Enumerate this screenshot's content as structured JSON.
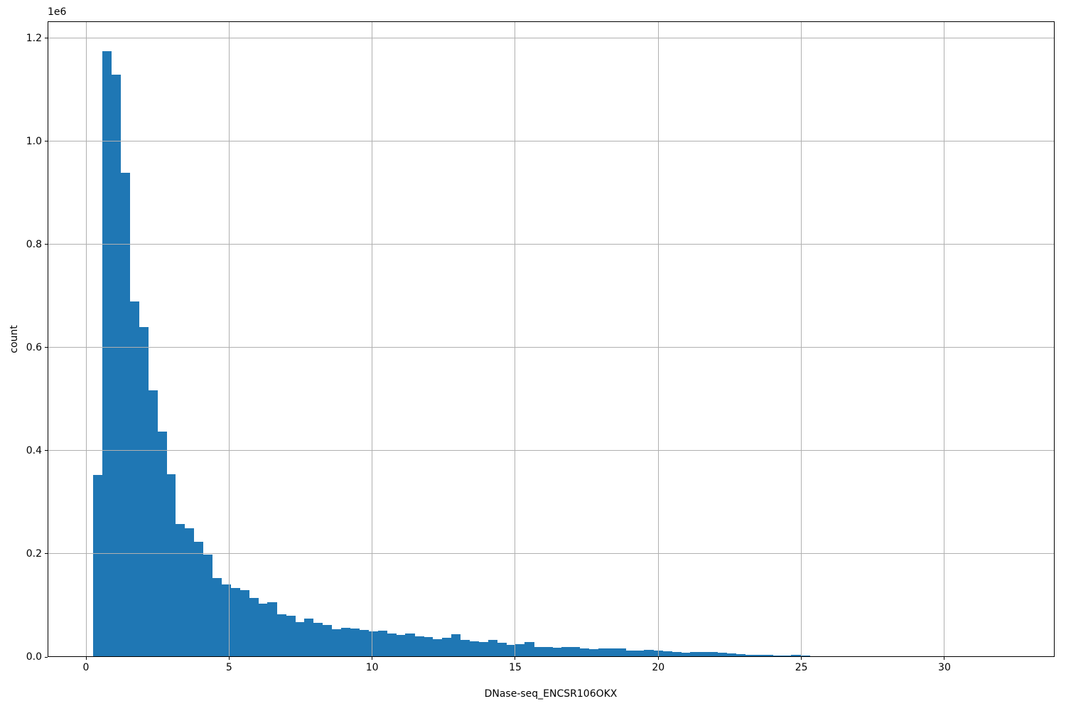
{
  "chart_data": {
    "type": "histogram",
    "title": "",
    "xlabel": "DNase-seq_ENCSR106OKX",
    "ylabel": "count",
    "y_offset_label": "1e6",
    "bar_color": "#1f77b4",
    "grid_color": "#b0b0b0",
    "spine_color": "#000000",
    "grid": true,
    "legend": false,
    "xlim": [
      -1.341,
      33.85
    ],
    "ylim": [
      0,
      1233000
    ],
    "xticks": [
      0,
      5,
      10,
      15,
      20,
      25,
      30
    ],
    "xtick_labels": [
      "0",
      "5",
      "10",
      "15",
      "20",
      "25",
      "30"
    ],
    "yticks": [
      0,
      200000,
      400000,
      600000,
      800000,
      1000000,
      1200000
    ],
    "ytick_labels": [
      "0.0",
      "0.2",
      "0.4",
      "0.6",
      "0.8",
      "1.0",
      "1.2"
    ],
    "bins": {
      "start": 0.241,
      "width": 0.3211,
      "counts": [
        353000,
        1175000,
        1130000,
        939000,
        690000,
        640000,
        517000,
        437000,
        355000,
        258000,
        250000,
        224000,
        198000,
        153000,
        141000,
        134000,
        129000,
        114000,
        103000,
        106000,
        83000,
        80000,
        68000,
        74000,
        66000,
        62000,
        54000,
        57000,
        55000,
        53000,
        50000,
        51000,
        45000,
        43000,
        46000,
        40000,
        38000,
        35000,
        37000,
        44000,
        33000,
        31000,
        29000,
        33000,
        28000,
        24000,
        25000,
        29000,
        20000,
        19000,
        18000,
        20000,
        19000,
        16000,
        15000,
        17000,
        17000,
        17000,
        12000,
        12000,
        14000,
        12000,
        11000,
        9000,
        8500,
        9000,
        10000,
        10000,
        8000,
        6500,
        5500,
        4600,
        4100,
        3700,
        3200,
        2800,
        3500,
        2500,
        1500
      ]
    }
  }
}
